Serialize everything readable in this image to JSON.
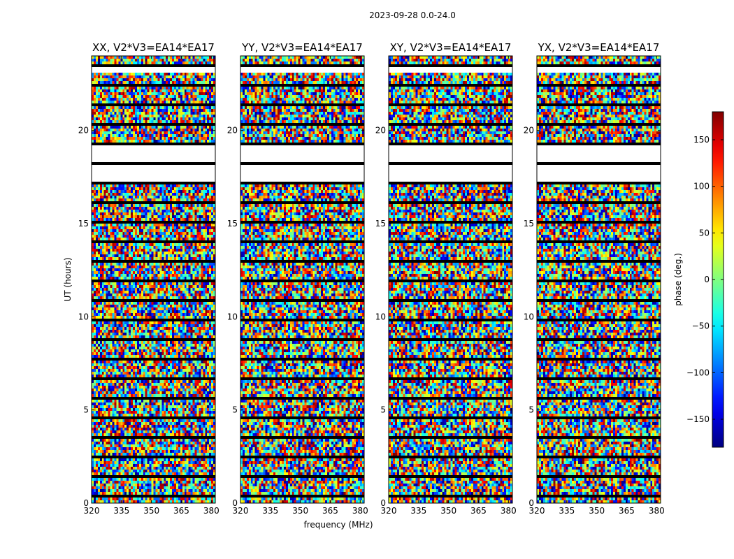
{
  "suptitle": "2023-09-28 0.0-24.0",
  "chart_data": {
    "type": "heatmap",
    "panels": [
      {
        "title": "XX, V2*V3=EA14*EA17"
      },
      {
        "title": "YY, V2*V3=EA14*EA17"
      },
      {
        "title": "XY, V2*V3=EA14*EA17"
      },
      {
        "title": "YX, V2*V3=EA14*EA17"
      }
    ],
    "xlabel": "frequency (MHz)",
    "ylabel": "UT (hours)",
    "xlim": [
      320,
      382
    ],
    "ylim": [
      0,
      24
    ],
    "xticks": [
      320,
      335,
      350,
      365,
      380
    ],
    "yticks": [
      0,
      5,
      10,
      15,
      20
    ],
    "colorbar": {
      "label": "phase (deg.)",
      "range": [
        -180,
        180
      ],
      "ticks": [
        150,
        100,
        50,
        0,
        -50,
        -100,
        -150
      ],
      "tick_labels": [
        "150",
        "100",
        "50",
        "0",
        "−50",
        "−100",
        "−150"
      ],
      "colormap": "jet"
    },
    "gaps_hours": [
      [
        17.2,
        19.4
      ],
      [
        23.1,
        23.4
      ]
    ],
    "colors": {
      "background": "#ffffff",
      "frame": "#000000"
    }
  }
}
